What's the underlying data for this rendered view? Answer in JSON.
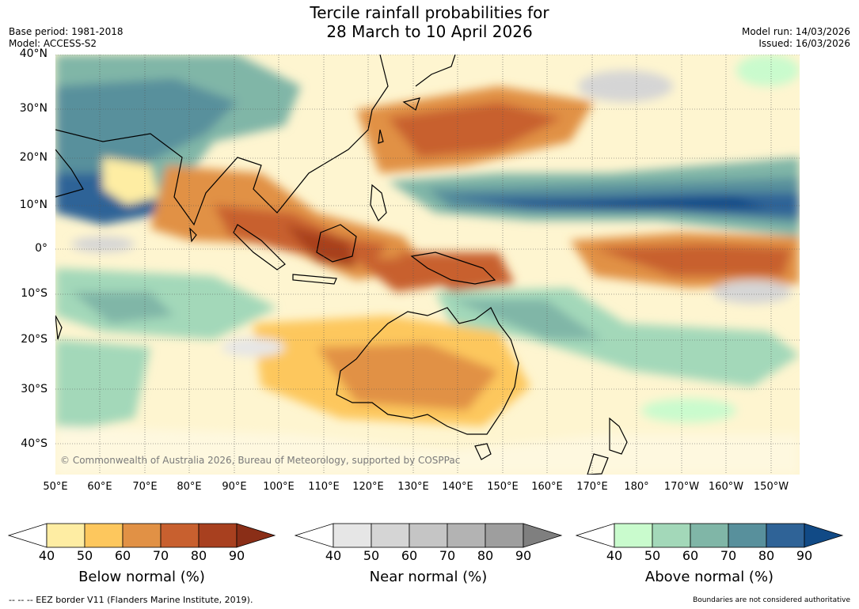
{
  "title": {
    "line1": "Tercile rainfall probabilities for",
    "line2": "28 March to 10 April 2026"
  },
  "meta_left": {
    "base_period": "Base period: 1981-2018",
    "model": "Model: ACCESS-S2"
  },
  "meta_right": {
    "model_run": "Model run: 14/03/2026",
    "issued": "Issued: 16/03/2026"
  },
  "map": {
    "copyright": "© Commonwealth of Australia 2026, Bureau of Meteorology, supported by COSPPac",
    "lat_labels": [
      "40°N",
      "30°N",
      "20°N",
      "10°N",
      "0°",
      "10°S",
      "20°S",
      "30°S",
      "40°S"
    ],
    "lon_labels": [
      "50°E",
      "60°E",
      "70°E",
      "80°E",
      "90°E",
      "100°E",
      "110°E",
      "120°E",
      "130°E",
      "140°E",
      "150°E",
      "160°E",
      "170°E",
      "180°",
      "170°W",
      "160°W",
      "150°W"
    ]
  },
  "colorbars": {
    "below": {
      "label": "Below normal (%)",
      "ticks": [
        "40",
        "50",
        "60",
        "70",
        "80",
        "90"
      ],
      "colors": [
        "#ffffff",
        "#feeda3",
        "#fdc75d",
        "#e19145",
        "#c8602f",
        "#a8401f",
        "#8a2e17"
      ]
    },
    "near": {
      "label": "Near normal (%)",
      "ticks": [
        "40",
        "50",
        "60",
        "70",
        "80",
        "90"
      ],
      "colors": [
        "#ffffff",
        "#e6e6e6",
        "#d5d5d5",
        "#c5c5c5",
        "#b3b3b3",
        "#9e9e9e",
        "#7f7f7f"
      ]
    },
    "above": {
      "label": "Above normal (%)",
      "ticks": [
        "40",
        "50",
        "60",
        "70",
        "80",
        "90"
      ],
      "colors": [
        "#ffffff",
        "#c9fbcd",
        "#a3d8b9",
        "#80b6a7",
        "#58909c",
        "#2f6397",
        "#114a86"
      ]
    }
  },
  "footer": {
    "eez": "--  --  -- EEZ border V11 (Flanders Marine Institute, 2019).",
    "disclaimer": "Boundaries are not considered authoritative"
  }
}
